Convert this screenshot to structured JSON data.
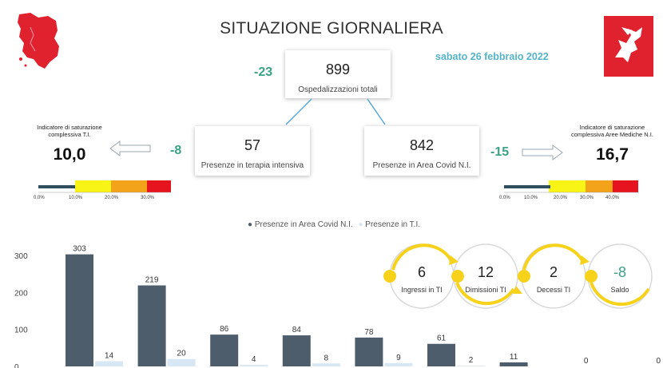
{
  "header": {
    "title": "SITUAZIONE GIORNALIERA",
    "date": "sabato 26 febbraio 2022"
  },
  "colors": {
    "tuscany_red": "#e0212e",
    "delta_green": "#3aa386",
    "date_blue": "#55b3c9",
    "bar_dark": "#4e5d6c",
    "bar_light": "#d7e7f3",
    "cycle_yellow": "#f7d21b"
  },
  "total": {
    "value": "899",
    "label": "Ospedalizzazioni totali",
    "delta": "-23"
  },
  "intensive": {
    "value": "57",
    "label": "Presenze in terapia intensiva",
    "delta": "-8"
  },
  "area_covid": {
    "value": "842",
    "label": "Presenze in Area Covid N.I.",
    "delta": "-15"
  },
  "indicator_ti": {
    "title_line1": "Indicatore di saturazione",
    "title_line2": "complessiva T.I.",
    "value": "10,0",
    "scale_labels": [
      "0.0%",
      "10.0%",
      "20.0%",
      "30.0%"
    ],
    "arrow_icon": "arrow-left-icon"
  },
  "indicator_area": {
    "title_line1": "Indicatore di saturazione",
    "title_line2": "complessiva Aree Mediche N.I.",
    "value": "16,7",
    "scale_labels": [
      "0.0%",
      "10.0%",
      "20.0%",
      "30.0%",
      "40.0%"
    ],
    "arrow_icon": "arrow-right-icon"
  },
  "logos": {
    "left": "tuscany-map-logo",
    "right": "regione-toscana-pegasus-logo"
  },
  "chart_data": {
    "type": "bar",
    "categories": [
      "",
      "",
      "",
      "",
      "",
      "",
      "",
      "",
      ""
    ],
    "series": [
      {
        "name": "Presenze in Area Covid N.I.",
        "values": [
          303,
          219,
          86,
          84,
          78,
          61,
          11,
          0,
          0
        ]
      },
      {
        "name": "Presenze in T.I.",
        "values": [
          14,
          20,
          4,
          8,
          9,
          2,
          null,
          null,
          null
        ]
      }
    ],
    "y_ticks": [
      "300",
      "200",
      "100",
      "0"
    ],
    "ylim": [
      0,
      330
    ],
    "legend_position": "top-center"
  },
  "cycle": [
    {
      "value": "6",
      "label": "Ingressi in TI"
    },
    {
      "value": "12",
      "label": "Dimissioni TI"
    },
    {
      "value": "2",
      "label": "Decessi TI"
    },
    {
      "value": "-8",
      "label": "Saldo"
    }
  ]
}
